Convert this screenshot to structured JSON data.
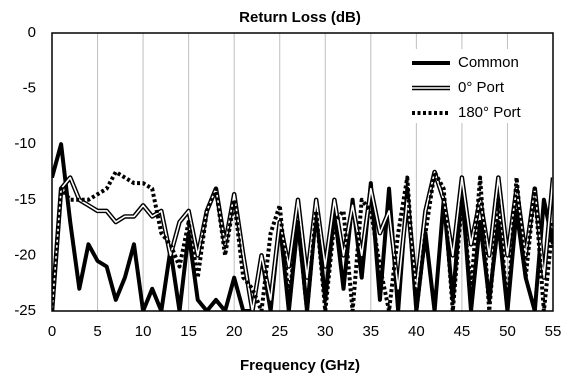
{
  "chart_data": {
    "type": "line",
    "title": "Return Loss (dB)",
    "x_label": "Frequency (GHz)",
    "x": [
      0,
      1,
      2,
      3,
      4,
      5,
      6,
      7,
      8,
      9,
      10,
      11,
      12,
      13,
      14,
      15,
      16,
      17,
      18,
      19,
      20,
      21,
      22,
      23,
      24,
      25,
      26,
      27,
      28,
      29,
      30,
      31,
      32,
      33,
      34,
      35,
      36,
      37,
      38,
      39,
      40,
      41,
      42,
      43,
      44,
      45,
      46,
      47,
      48,
      49,
      50,
      51,
      52,
      53,
      54,
      55
    ],
    "series": [
      {
        "name": "Common",
        "color": "#000000",
        "style": "solid",
        "values": [
          -13,
          -10,
          -17,
          -23,
          -19,
          -20.5,
          -21,
          -24,
          -22,
          -19,
          -25,
          -23,
          -25,
          -19.5,
          -25,
          -18,
          -24,
          -25,
          -24,
          -25,
          -22,
          -25,
          -25,
          -20,
          -25,
          -17,
          -25,
          -17,
          -25,
          -16,
          -24,
          -16,
          -23,
          -15,
          -22,
          -13.5,
          -24,
          -14,
          -25,
          -14,
          -25,
          -18,
          -25,
          -15,
          -24,
          -14,
          -25,
          -17,
          -24,
          -17,
          -25,
          -16,
          -22,
          -25,
          -15,
          -19
        ]
      },
      {
        "name": "0° Port",
        "color": "#000000",
        "style": "double",
        "values": [
          -25,
          -14,
          -13,
          -15,
          -15.5,
          -16,
          -16,
          -17,
          -16.5,
          -16.5,
          -15.5,
          -16.5,
          -16,
          -20,
          -17,
          -16,
          -20,
          -16,
          -14,
          -19,
          -14.5,
          -20,
          -25,
          -20,
          -24,
          -17,
          -21,
          -15,
          -22,
          -15,
          -21,
          -15,
          -20,
          -15.5,
          -20,
          -14,
          -18,
          -16,
          -23,
          -15,
          -23,
          -16,
          -12.5,
          -15,
          -20,
          -13,
          -19,
          -15,
          -20,
          -13,
          -20,
          -14,
          -20,
          -14,
          -22,
          -13
        ]
      },
      {
        "name": "180° Port",
        "color": "#000000",
        "style": "dotted",
        "values": [
          -25,
          -14,
          -15,
          -15,
          -15,
          -14.5,
          -14,
          -12.5,
          -13,
          -13.5,
          -13.5,
          -14,
          -18,
          -19,
          -21,
          -17,
          -22,
          -16,
          -14,
          -20,
          -15,
          -22,
          -23,
          -25,
          -18,
          -15.5,
          -24,
          -17,
          -25,
          -16,
          -25,
          -17,
          -16,
          -25,
          -15,
          -16,
          -21,
          -25,
          -18,
          -13,
          -25,
          -18,
          -12.5,
          -14,
          -25,
          -15,
          -23,
          -13,
          -25,
          -15,
          -25,
          -13,
          -22,
          -14,
          -25,
          -17
        ]
      }
    ],
    "xlim": [
      0,
      55
    ],
    "xticks": [
      0,
      5,
      10,
      15,
      20,
      25,
      30,
      35,
      40,
      45,
      50,
      55
    ],
    "ylim": [
      -25,
      0
    ],
    "yticks": [
      0,
      -5,
      -10,
      -15,
      -20,
      -25
    ],
    "grid": "x",
    "legend": "upper right"
  }
}
